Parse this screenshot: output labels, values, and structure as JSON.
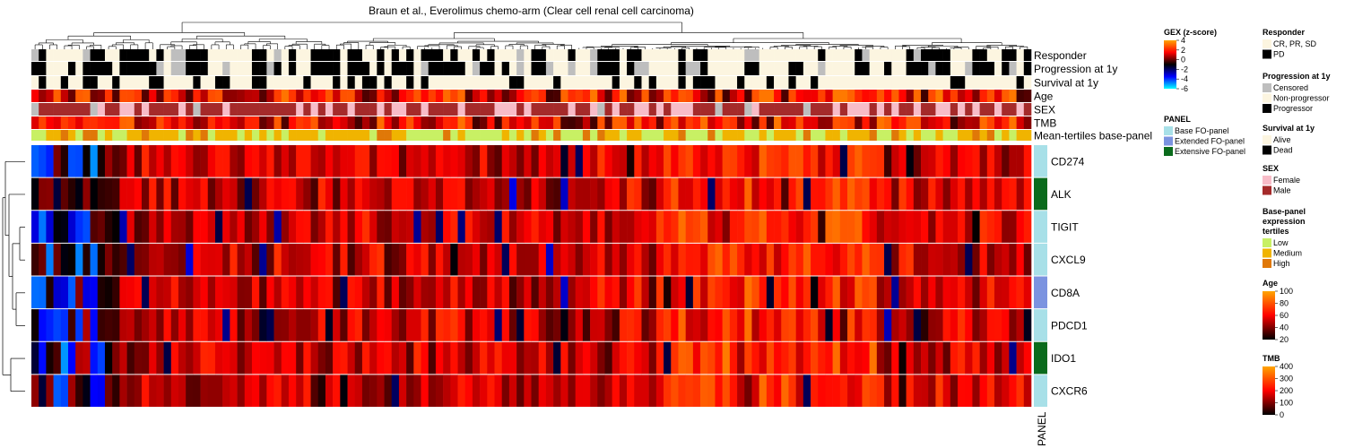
{
  "chart_data": {
    "type": "heatmap",
    "title": "Braun et al., Everolimus chemo-arm (Clear cell renal cell carcinoma)",
    "n_samples": 136,
    "annotation_rows": [
      "Responder",
      "Progression at 1y",
      "Survival at 1y",
      "Age",
      "SEX",
      "TMB",
      "Mean-tertiles base-panel"
    ],
    "genes": [
      {
        "name": "CD274",
        "panel": "Base FO-panel"
      },
      {
        "name": "ALK",
        "panel": "Extensive FO-panel"
      },
      {
        "name": "TIGIT",
        "panel": "Base FO-panel"
      },
      {
        "name": "CXCL9",
        "panel": "Base FO-panel"
      },
      {
        "name": "CD8A",
        "panel": "Extended FO-panel"
      },
      {
        "name": "PDCD1",
        "panel": "Base FO-panel"
      },
      {
        "name": "IDO1",
        "panel": "Extensive FO-panel"
      },
      {
        "name": "CXCR6",
        "panel": "Base FO-panel"
      }
    ],
    "panel_label": "PANEL",
    "legends": {
      "gex": {
        "title": "GEX (z-score)",
        "ticks": [
          4,
          2,
          0,
          -2,
          -4,
          -6
        ],
        "range": [
          -6,
          4
        ],
        "colors": [
          "#00ffff",
          "#0000ff",
          "#000000",
          "#ff0000",
          "#ffa500"
        ]
      },
      "panel": {
        "title": "PANEL",
        "entries": [
          {
            "label": "Base FO-panel",
            "color": "#a8e0e8"
          },
          {
            "label": "Extended FO-panel",
            "color": "#7b93e0"
          },
          {
            "label": "Extensive FO-panel",
            "color": "#0a6b1c"
          }
        ]
      },
      "responder": {
        "title": "Responder",
        "entries": [
          {
            "label": "CR, PR, SD",
            "color": "#fcf5e0"
          },
          {
            "label": "PD",
            "color": "#000000"
          }
        ]
      },
      "progression": {
        "title": "Progression at 1y",
        "entries": [
          {
            "label": "Censored",
            "color": "#bebebe"
          },
          {
            "label": "Non-progressor",
            "color": "#fcf5e0"
          },
          {
            "label": "Progressor",
            "color": "#000000"
          }
        ]
      },
      "survival": {
        "title": "Survival at 1y",
        "entries": [
          {
            "label": "Alive",
            "color": "#fcf5e0"
          },
          {
            "label": "Dead",
            "color": "#000000"
          }
        ]
      },
      "sex": {
        "title": "SEX",
        "entries": [
          {
            "label": "Female",
            "color": "#f8bcc8"
          },
          {
            "label": "Male",
            "color": "#a52a2a"
          }
        ]
      },
      "tertiles": {
        "title_lines": [
          "Base-panel",
          "expression",
          "tertiles"
        ],
        "entries": [
          {
            "label": "Low",
            "color": "#c8f064"
          },
          {
            "label": "Medium",
            "color": "#f0b400"
          },
          {
            "label": "High",
            "color": "#e07808"
          }
        ]
      },
      "age": {
        "title": "Age",
        "ticks": [
          100,
          80,
          60,
          40,
          20
        ],
        "range": [
          20,
          100
        ],
        "colors": [
          "#000000",
          "#ff0000",
          "#ffa500"
        ]
      },
      "tmb": {
        "title": "TMB",
        "ticks": [
          400,
          300,
          200,
          100,
          0
        ],
        "range": [
          0,
          400
        ],
        "colors": [
          "#000000",
          "#ff0000",
          "#ffa500"
        ]
      }
    }
  }
}
